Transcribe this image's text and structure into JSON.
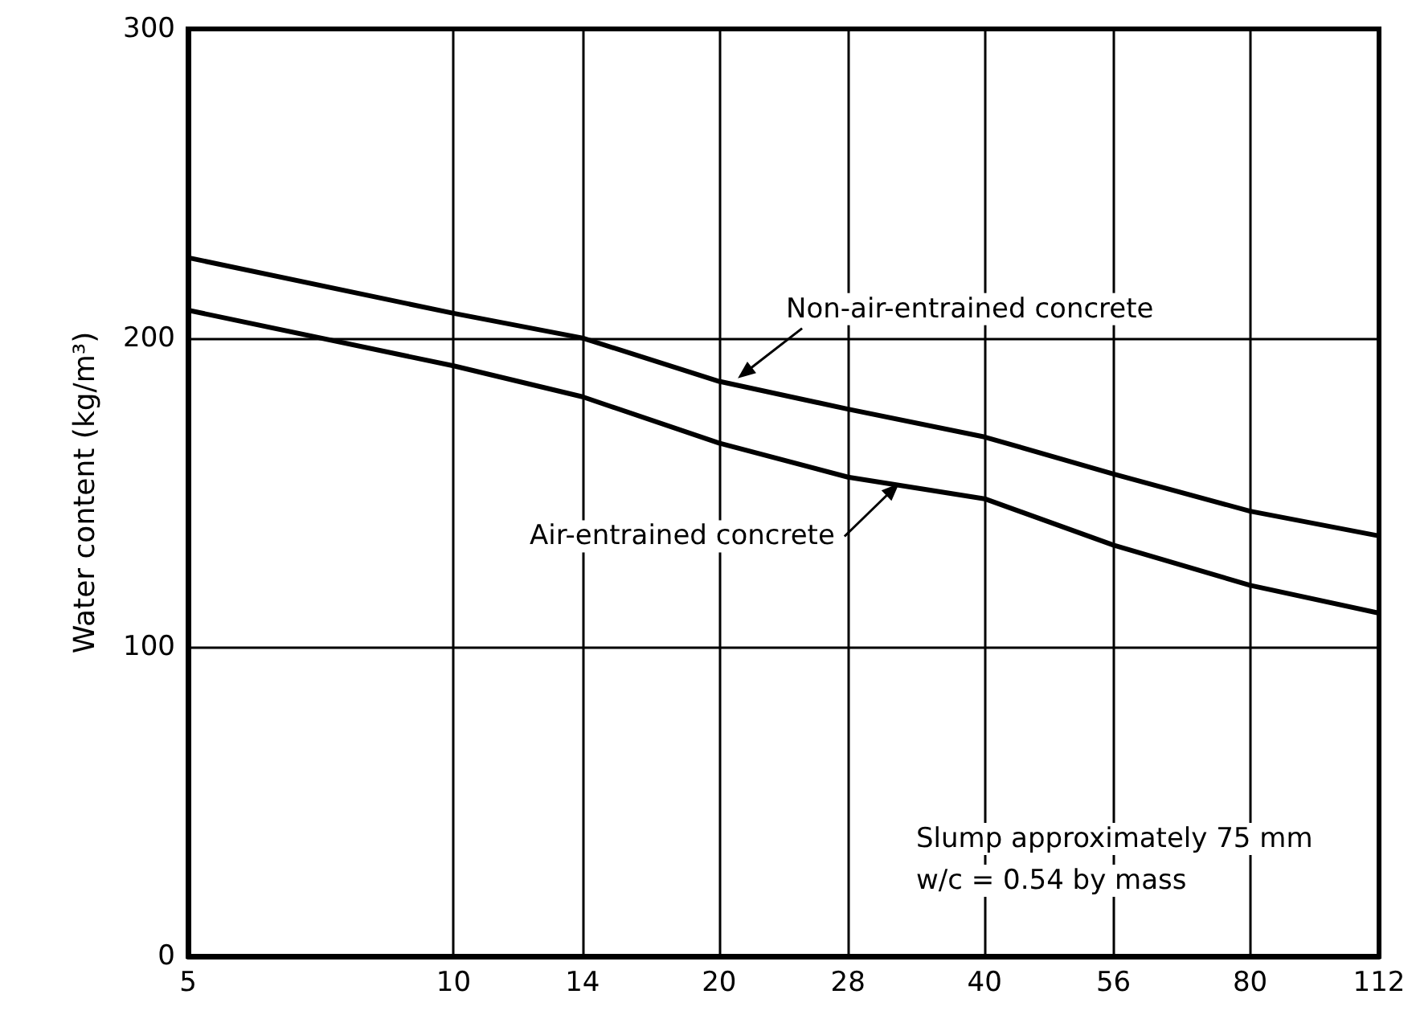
{
  "chart_data": {
    "type": "line",
    "ylabel": "Water content (kg/m³)",
    "x": [
      5,
      10,
      14,
      20,
      28,
      40,
      56,
      80,
      112
    ],
    "series": [
      {
        "color": "#000000",
        "values": [
          226,
          208,
          200,
          186,
          177,
          168,
          156,
          144,
          136
        ]
      },
      {
        "color": "#000000",
        "values": [
          209,
          191,
          181,
          166,
          155,
          148,
          133,
          120,
          111
        ]
      }
    ],
    "log": "x",
    "xlim": [
      5,
      112
    ],
    "xticks": [
      5,
      10,
      14,
      20,
      28,
      40,
      56,
      80,
      112
    ],
    "ylim": [
      0,
      300
    ],
    "yticks": [
      0,
      100,
      200,
      300
    ],
    "grid": true,
    "marker": "none",
    "line_style": "solid",
    "annotations": [
      {
        "text": "Non-air-entrained concrete",
        "x": 21,
        "y": 187
      },
      {
        "text": "Air-entrained concrete",
        "x": 32,
        "y": 153
      },
      "Slump approximately 75 mm",
      "w/c = 0.54 by mass"
    ]
  }
}
